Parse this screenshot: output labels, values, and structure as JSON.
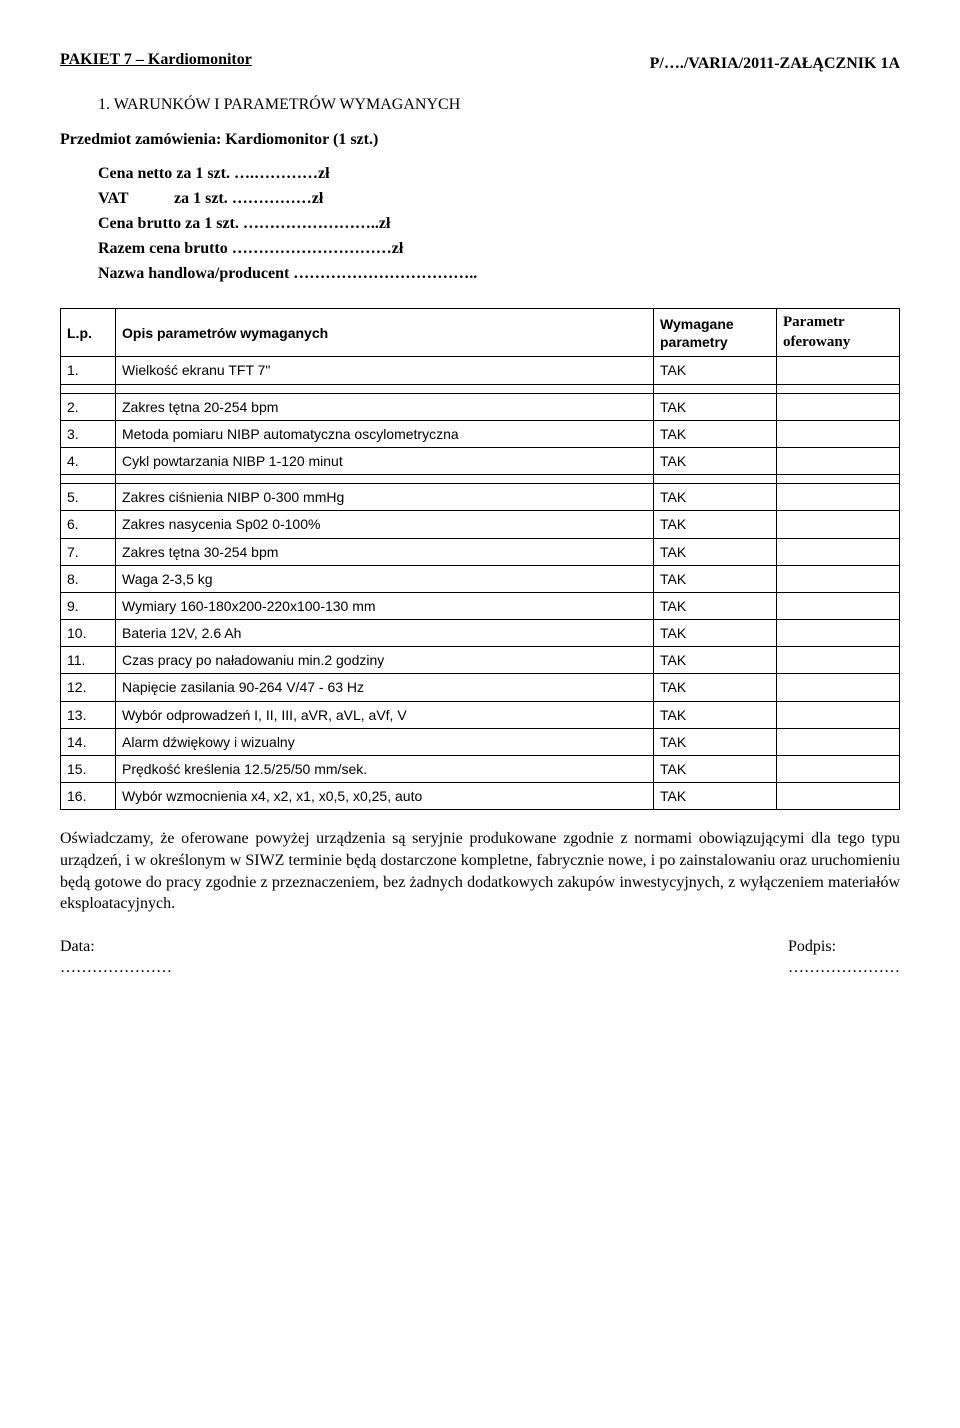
{
  "header": {
    "package_title": "PAKIET 7 – Kardiomonitor",
    "attachment_ref": "P/…./VARIA/2011-ZAŁĄCZNIK 1A"
  },
  "section1": {
    "number": "1.",
    "heading": "WARUNKÓW I PARAMETRÓW WYMAGANYCH"
  },
  "subject_line": "Przedmiot zamówienia: Kardiomonitor (1 szt.)",
  "prices": {
    "net_label": "Cena netto za 1 szt. ….…………zł",
    "vat_label": "VAT",
    "vat_value": "za 1 szt. ……………zł",
    "gross_label": "Cena brutto za 1 szt. ……………………..zł",
    "total_label": "Razem cena brutto …………………………zł",
    "producer_label": "Nazwa handlowa/producent …………………………….."
  },
  "table": {
    "columns": {
      "lp": "L.p.",
      "opis": "Opis parametrów  wymaganych",
      "req": "Wymagane parametry",
      "off": "Parametr oferowany"
    },
    "rows": [
      {
        "n": "1.",
        "text": "Wielkość ekranu TFT 7\"",
        "req": "TAK"
      },
      {
        "n": "2.",
        "text": "Zakres tętna 20-254 bpm",
        "req": "TAK"
      },
      {
        "n": "3.",
        "text": "Metoda pomiaru NIBP automatyczna oscylometryczna",
        "req": "TAK"
      },
      {
        "n": "4.",
        "text": "Cykl powtarzania NIBP 1-120 minut",
        "req": "TAK"
      },
      {
        "n": "5.",
        "text": "Zakres ciśnienia NIBP 0-300 mmHg",
        "req": "TAK"
      },
      {
        "n": "6.",
        "text": "Zakres nasycenia Sp02 0-100%",
        "req": "TAK"
      },
      {
        "n": "7.",
        "text": "Zakres tętna 30-254 bpm",
        "req": "TAK"
      },
      {
        "n": "8.",
        "text": "Waga 2-3,5 kg",
        "req": "TAK"
      },
      {
        "n": "9.",
        "text": "Wymiary 160-180x200-220x100-130 mm",
        "req": "TAK"
      },
      {
        "n": "10.",
        "text": "Bateria 12V, 2.6 Ah",
        "req": "TAK"
      },
      {
        "n": "11.",
        "text": "Czas pracy po naładowaniu min.2 godziny",
        "req": "TAK"
      },
      {
        "n": "12.",
        "text": "Napięcie zasilania 90-264 V/47 - 63 Hz",
        "req": "TAK"
      },
      {
        "n": "13.",
        "text": "Wybór odprowadzeń I, II, III, aVR, aVL, aVf, V",
        "req": "TAK"
      },
      {
        "n": "14.",
        "text": "Alarm dźwiękowy i wizualny",
        "req": "TAK"
      },
      {
        "n": "15.",
        "text": "Prędkość kreślenia 12.5/25/50 mm/sek.",
        "req": "TAK"
      },
      {
        "n": "16.",
        "text": "Wybór wzmocnienia x4, x2, x1, x0,5, x0,25, auto",
        "req": "TAK"
      }
    ],
    "gap_after": [
      0,
      3
    ]
  },
  "declaration": "Oświadczamy, że oferowane powyżej urządzenia są seryjnie produkowane zgodnie z normami obowiązującymi dla tego typu urządzeń, i w określonym w SIWZ terminie będą dostarczone kompletne, fabrycznie nowe, i po zainstalowaniu oraz uruchomieniu będą gotowe do pracy zgodnie z przeznaczeniem, bez żadnych dodatkowych zakupów inwestycyjnych, z wyłączeniem materiałów eksploatacyjnych.",
  "signatures": {
    "date_label": "Data:",
    "sign_label": "Podpis:",
    "dots_left": "…………………",
    "dots_right": "…………………"
  }
}
